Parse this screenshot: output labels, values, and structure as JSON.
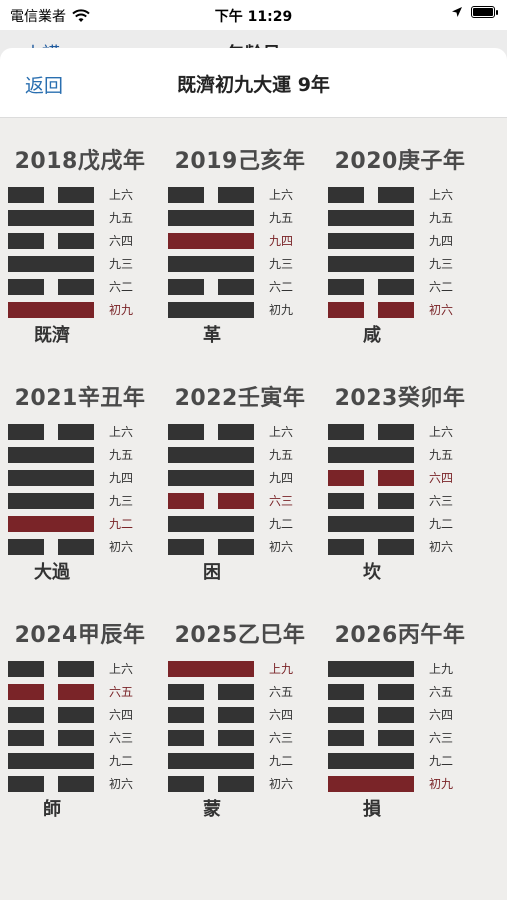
{
  "status": {
    "carrier": "電信業者",
    "time": "下午 11:29"
  },
  "under": {
    "left": "山謨",
    "title": "包齡易"
  },
  "nav": {
    "back": "返回",
    "title": "既濟初九大運 9年"
  },
  "years": [
    {
      "title": "2018戊戌年",
      "name": "既濟",
      "lines": [
        {
          "label": "上六",
          "type": "yin",
          "red": false
        },
        {
          "label": "九五",
          "type": "yang",
          "red": false
        },
        {
          "label": "六四",
          "type": "yin",
          "red": false
        },
        {
          "label": "九三",
          "type": "yang",
          "red": false
        },
        {
          "label": "六二",
          "type": "yin",
          "red": false
        },
        {
          "label": "初九",
          "type": "yang",
          "red": true
        }
      ]
    },
    {
      "title": "2019己亥年",
      "name": "革",
      "lines": [
        {
          "label": "上六",
          "type": "yin",
          "red": false
        },
        {
          "label": "九五",
          "type": "yang",
          "red": false
        },
        {
          "label": "九四",
          "type": "yang",
          "red": true
        },
        {
          "label": "九三",
          "type": "yang",
          "red": false
        },
        {
          "label": "六二",
          "type": "yin",
          "red": false
        },
        {
          "label": "初九",
          "type": "yang",
          "red": false
        }
      ]
    },
    {
      "title": "2020庚子年",
      "name": "咸",
      "lines": [
        {
          "label": "上六",
          "type": "yin",
          "red": false
        },
        {
          "label": "九五",
          "type": "yang",
          "red": false
        },
        {
          "label": "九四",
          "type": "yang",
          "red": false
        },
        {
          "label": "九三",
          "type": "yang",
          "red": false
        },
        {
          "label": "六二",
          "type": "yin",
          "red": false
        },
        {
          "label": "初六",
          "type": "yin",
          "red": true
        }
      ]
    },
    {
      "title": "2021辛丑年",
      "name": "大過",
      "lines": [
        {
          "label": "上六",
          "type": "yin",
          "red": false
        },
        {
          "label": "九五",
          "type": "yang",
          "red": false
        },
        {
          "label": "九四",
          "type": "yang",
          "red": false
        },
        {
          "label": "九三",
          "type": "yang",
          "red": false
        },
        {
          "label": "九二",
          "type": "yang",
          "red": true
        },
        {
          "label": "初六",
          "type": "yin",
          "red": false
        }
      ]
    },
    {
      "title": "2022壬寅年",
      "name": "困",
      "lines": [
        {
          "label": "上六",
          "type": "yin",
          "red": false
        },
        {
          "label": "九五",
          "type": "yang",
          "red": false
        },
        {
          "label": "九四",
          "type": "yang",
          "red": false
        },
        {
          "label": "六三",
          "type": "yin",
          "red": true
        },
        {
          "label": "九二",
          "type": "yang",
          "red": false
        },
        {
          "label": "初六",
          "type": "yin",
          "red": false
        }
      ]
    },
    {
      "title": "2023癸卯年",
      "name": "坎",
      "lines": [
        {
          "label": "上六",
          "type": "yin",
          "red": false
        },
        {
          "label": "九五",
          "type": "yang",
          "red": false
        },
        {
          "label": "六四",
          "type": "yin",
          "red": true
        },
        {
          "label": "六三",
          "type": "yin",
          "red": false
        },
        {
          "label": "九二",
          "type": "yang",
          "red": false
        },
        {
          "label": "初六",
          "type": "yin",
          "red": false
        }
      ]
    },
    {
      "title": "2024甲辰年",
      "name": "師",
      "lines": [
        {
          "label": "上六",
          "type": "yin",
          "red": false
        },
        {
          "label": "六五",
          "type": "yin",
          "red": true
        },
        {
          "label": "六四",
          "type": "yin",
          "red": false
        },
        {
          "label": "六三",
          "type": "yin",
          "red": false
        },
        {
          "label": "九二",
          "type": "yang",
          "red": false
        },
        {
          "label": "初六",
          "type": "yin",
          "red": false
        }
      ]
    },
    {
      "title": "2025乙巳年",
      "name": "蒙",
      "lines": [
        {
          "label": "上九",
          "type": "yang",
          "red": true
        },
        {
          "label": "六五",
          "type": "yin",
          "red": false
        },
        {
          "label": "六四",
          "type": "yin",
          "red": false
        },
        {
          "label": "六三",
          "type": "yin",
          "red": false
        },
        {
          "label": "九二",
          "type": "yang",
          "red": false
        },
        {
          "label": "初六",
          "type": "yin",
          "red": false
        }
      ]
    },
    {
      "title": "2026丙午年",
      "name": "損",
      "lines": [
        {
          "label": "上九",
          "type": "yang",
          "red": false
        },
        {
          "label": "六五",
          "type": "yin",
          "red": false
        },
        {
          "label": "六四",
          "type": "yin",
          "red": false
        },
        {
          "label": "六三",
          "type": "yin",
          "red": false
        },
        {
          "label": "九二",
          "type": "yang",
          "red": false
        },
        {
          "label": "初九",
          "type": "yang",
          "red": true
        }
      ]
    }
  ],
  "colors": {
    "yang": "#333333",
    "highlight": "#7a2428",
    "link": "#2a6fb0"
  }
}
